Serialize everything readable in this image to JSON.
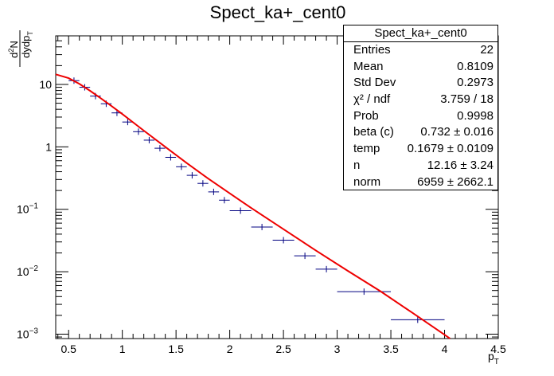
{
  "chart_data": {
    "type": "scatter",
    "title": "Spect_ka+_cent0",
    "xlabel": "p_T",
    "ylabel": "d^2N / dydp_T",
    "xlim": [
      0.38,
      4.5
    ],
    "ylim": [
      0.00085,
      60
    ],
    "yscale": "log",
    "xticks": [
      "0.5",
      "1",
      "1.5",
      "2",
      "2.5",
      "3",
      "3.5",
      "4",
      "4.5"
    ],
    "yticks": [
      "10^{-3}",
      "10^{-2}",
      "10^{-1}",
      "1",
      "10"
    ],
    "series": [
      {
        "name": "",
        "style": "errorbar",
        "color": "#000080",
        "x": [
          0.55,
          0.65,
          0.75,
          0.85,
          0.95,
          1.05,
          1.15,
          1.25,
          1.35,
          1.45,
          1.55,
          1.65,
          1.75,
          1.85,
          1.95,
          2.1,
          2.3,
          2.5,
          2.7,
          2.9,
          3.25,
          3.75
        ],
        "xerr": [
          0.05,
          0.05,
          0.05,
          0.05,
          0.05,
          0.05,
          0.05,
          0.05,
          0.05,
          0.05,
          0.05,
          0.05,
          0.05,
          0.05,
          0.05,
          0.1,
          0.1,
          0.1,
          0.1,
          0.1,
          0.25,
          0.25
        ],
        "y": [
          11.5,
          9.0,
          6.5,
          4.9,
          3.5,
          2.5,
          1.75,
          1.28,
          0.95,
          0.68,
          0.48,
          0.35,
          0.26,
          0.19,
          0.14,
          0.095,
          0.052,
          0.032,
          0.018,
          0.011,
          0.0048,
          0.0017
        ]
      },
      {
        "name": "",
        "style": "line",
        "color": "#ee0000",
        "x": [
          0.38,
          0.5,
          0.6,
          0.7,
          0.8,
          0.9,
          1.0,
          1.2,
          1.4,
          1.6,
          1.8,
          2.0,
          2.2,
          2.5,
          2.8,
          3.1,
          3.4,
          3.7,
          4.0,
          4.05
        ],
        "y": [
          14.5,
          12.6,
          10.2,
          7.9,
          6.0,
          4.5,
          3.35,
          1.82,
          1.0,
          0.55,
          0.31,
          0.18,
          0.105,
          0.048,
          0.022,
          0.0103,
          0.0049,
          0.0022,
          0.00098,
          0.00085
        ]
      }
    ],
    "grid": false
  },
  "stats": {
    "title": "Spect_ka+_cent0",
    "rows": [
      {
        "key": "Entries",
        "value": "22"
      },
      {
        "key": "Mean",
        "value": "0.8109"
      },
      {
        "key": "Std Dev",
        "value": "0.2973"
      },
      {
        "key": "χ² / ndf",
        "value": "3.759 / 18"
      },
      {
        "key": "Prob",
        "value": "0.9998"
      },
      {
        "key": "beta (c)",
        "value": "0.732  ± 0.016"
      },
      {
        "key": "temp",
        "value": "0.1679  ± 0.0109"
      },
      {
        "key": "n",
        "value": "12.16  ± 3.24"
      },
      {
        "key": "norm",
        "value": "6959  ± 2662.1"
      }
    ]
  }
}
